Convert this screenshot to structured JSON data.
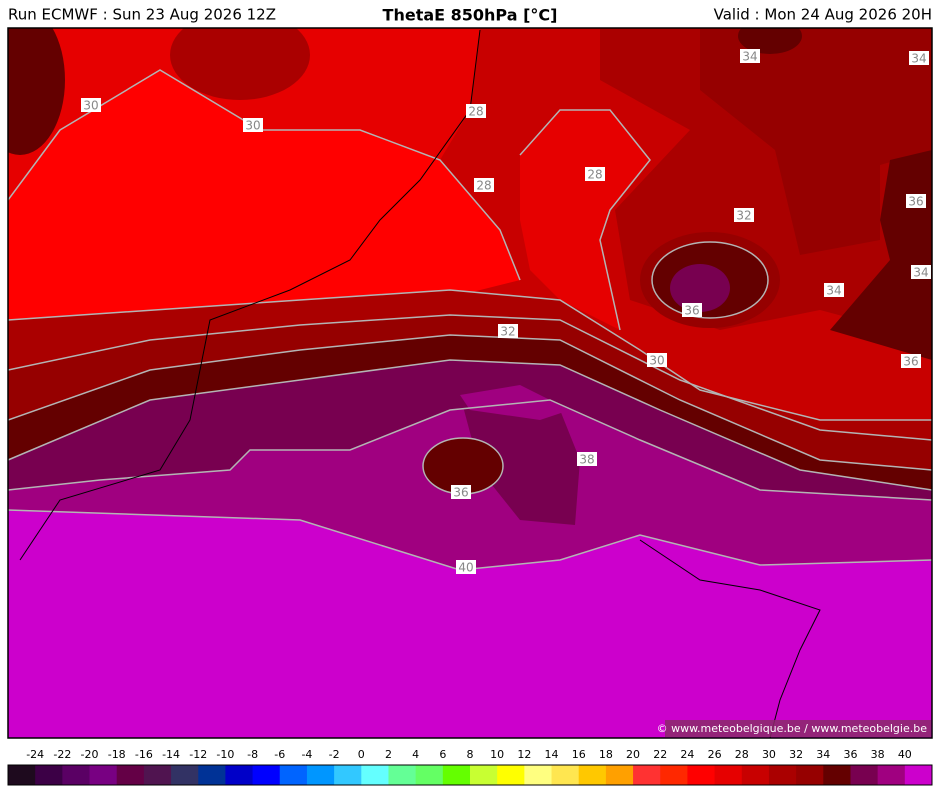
{
  "header": {
    "run": "Run ECMWF : Sun 23 Aug 2026 12Z",
    "title": "ThetaE 850hPa [°C]",
    "valid": "Valid : Mon 24 Aug 2026 20H"
  },
  "map": {
    "contour_labels": [
      30,
      30,
      28,
      28,
      28,
      34,
      34,
      36,
      32,
      34,
      34,
      36,
      32,
      30,
      36,
      38,
      36,
      40
    ],
    "credit": "© www.meteobelgique.be / www.meteobelgie.be"
  },
  "colorbar": {
    "labels": [
      -24,
      -22,
      -20,
      -18,
      -16,
      -14,
      -12,
      -10,
      -8,
      -6,
      -4,
      -2,
      0,
      2,
      4,
      6,
      8,
      10,
      12,
      14,
      16,
      18,
      20,
      22,
      24,
      26,
      28,
      30,
      32,
      34,
      36,
      38,
      40
    ],
    "colors": [
      "#1e0a1e",
      "#3c0046",
      "#5a0064",
      "#780082",
      "#640046",
      "#501450",
      "#323264",
      "#003296",
      "#0000c8",
      "#0000ff",
      "#0064ff",
      "#0096ff",
      "#32c8ff",
      "#64ffff",
      "#64ff96",
      "#64ff64",
      "#64ff00",
      "#c8ff32",
      "#ffff00",
      "#ffff80",
      "#ffe650",
      "#ffc800",
      "#ffa000",
      "#ff3232",
      "#ff2800",
      "#ff0000",
      "#e60000",
      "#c80000",
      "#aa0000",
      "#960000",
      "#640000",
      "#780050",
      "#a00080",
      "#cc00cc"
    ]
  }
}
